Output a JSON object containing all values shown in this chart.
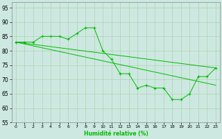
{
  "xlabel": "Humidité relative (%)",
  "background_color": "#cce8e0",
  "grid_color": "#aaccaa",
  "line_color": "#00bb00",
  "xlim": [
    -0.5,
    23.5
  ],
  "ylim": [
    55,
    97
  ],
  "yticks": [
    55,
    60,
    65,
    70,
    75,
    80,
    85,
    90,
    95
  ],
  "xticks": [
    0,
    1,
    2,
    3,
    4,
    5,
    6,
    7,
    8,
    9,
    10,
    11,
    12,
    13,
    14,
    15,
    16,
    17,
    18,
    19,
    20,
    21,
    22,
    23
  ],
  "line1_marked": {
    "x": [
      0,
      1,
      2,
      3,
      4,
      5,
      6,
      7,
      8,
      9,
      10,
      11,
      12,
      13,
      14,
      15,
      16,
      17,
      18,
      19,
      20,
      21,
      22,
      23
    ],
    "y": [
      83,
      83,
      83,
      85,
      85,
      85,
      84,
      86,
      88,
      88,
      80,
      77,
      72,
      72,
      67,
      68,
      67,
      67,
      63,
      63,
      65,
      71,
      71,
      74
    ]
  },
  "line2_smooth": {
    "x": [
      0,
      23
    ],
    "y": [
      83,
      74
    ]
  },
  "line3_smooth": {
    "x": [
      0,
      23
    ],
    "y": [
      83,
      68
    ]
  }
}
